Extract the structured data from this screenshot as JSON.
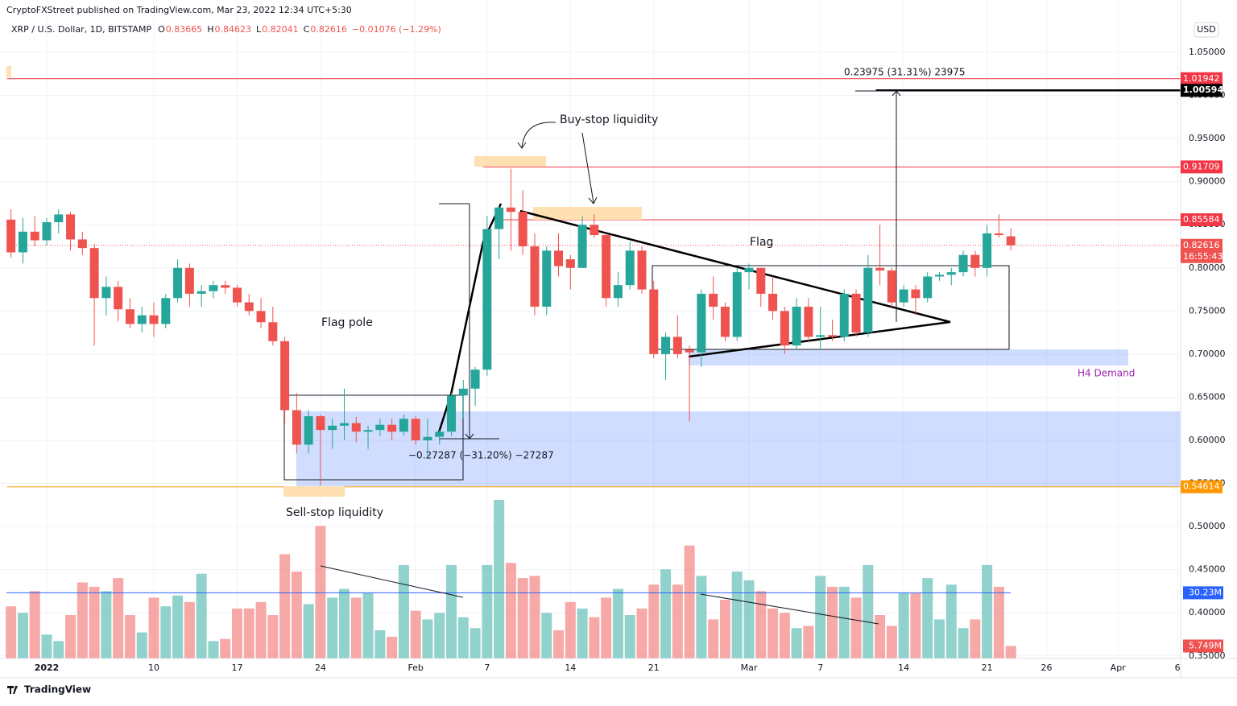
{
  "header": {
    "publisher": "CryptoFXStreet published on TradingView.com, Mar 23, 2022 12:34 UTC+5:30",
    "symbol": "XRP / U.S. Dollar, 1D, BITSTAMP",
    "ohlc": [
      {
        "key": "O",
        "value": "0.83665"
      },
      {
        "key": "H",
        "value": "0.84623"
      },
      {
        "key": "L",
        "value": "0.82041"
      },
      {
        "key": "C",
        "value": "0.82616"
      }
    ],
    "change": "−0.01076 (−1.29%)",
    "currency": "USD"
  },
  "footer": {
    "brand": "TradingView"
  },
  "chart_data": {
    "type": "candlestick",
    "up_color": "#26a69a",
    "down_color": "#ef5350",
    "volume_up_color": "rgba(38,166,154,0.5)",
    "volume_down_color": "rgba(239,83,80,0.5)",
    "x": [
      "2021-12-29",
      "2021-12-30",
      "2021-12-31",
      "2022-01-01",
      "2022-01-02",
      "2022-01-03",
      "2022-01-04",
      "2022-01-05",
      "2022-01-06",
      "2022-01-07",
      "2022-01-08",
      "2022-01-09",
      "2022-01-10",
      "2022-01-11",
      "2022-01-12",
      "2022-01-13",
      "2022-01-14",
      "2022-01-15",
      "2022-01-16",
      "2022-01-17",
      "2022-01-18",
      "2022-01-19",
      "2022-01-20",
      "2022-01-21",
      "2022-01-22",
      "2022-01-23",
      "2022-01-24",
      "2022-01-25",
      "2022-01-26",
      "2022-01-27",
      "2022-01-28",
      "2022-01-29",
      "2022-01-30",
      "2022-01-31",
      "2022-02-01",
      "2022-02-02",
      "2022-02-03",
      "2022-02-04",
      "2022-02-05",
      "2022-02-06",
      "2022-02-07",
      "2022-02-08",
      "2022-02-09",
      "2022-02-10",
      "2022-02-11",
      "2022-02-12",
      "2022-02-13",
      "2022-02-14",
      "2022-02-15",
      "2022-02-16",
      "2022-02-17",
      "2022-02-18",
      "2022-02-19",
      "2022-02-20",
      "2022-02-21",
      "2022-02-22",
      "2022-02-23",
      "2022-02-24",
      "2022-02-25",
      "2022-02-26",
      "2022-02-27",
      "2022-02-28",
      "2022-03-01",
      "2022-03-02",
      "2022-03-03",
      "2022-03-04",
      "2022-03-05",
      "2022-03-06",
      "2022-03-07",
      "2022-03-08",
      "2022-03-09",
      "2022-03-10",
      "2022-03-11",
      "2022-03-12",
      "2022-03-13",
      "2022-03-14",
      "2022-03-15",
      "2022-03-16",
      "2022-03-17",
      "2022-03-18",
      "2022-03-19",
      "2022-03-20",
      "2022-03-21",
      "2022-03-22",
      "2022-03-23"
    ],
    "open": [
      0.856,
      0.818,
      0.842,
      0.832,
      0.853,
      0.862,
      0.833,
      0.823,
      0.765,
      0.778,
      0.752,
      0.735,
      0.745,
      0.735,
      0.765,
      0.8,
      0.77,
      0.773,
      0.78,
      0.777,
      0.76,
      0.75,
      0.737,
      0.715,
      0.635,
      0.595,
      0.628,
      0.612,
      0.617,
      0.62,
      0.61,
      0.612,
      0.618,
      0.61,
      0.625,
      0.6,
      0.604,
      0.61,
      0.652,
      0.66,
      0.682,
      0.845,
      0.87,
      0.865,
      0.825,
      0.755,
      0.82,
      0.81,
      0.8,
      0.85,
      0.838,
      0.765,
      0.78,
      0.82,
      0.775,
      0.7,
      0.72,
      0.705,
      0.702,
      0.77,
      0.755,
      0.72,
      0.795,
      0.8,
      0.77,
      0.75,
      0.71,
      0.755,
      0.72,
      0.722,
      0.72,
      0.77,
      0.725,
      0.8,
      0.797,
      0.76,
      0.775,
      0.765,
      0.79,
      0.792,
      0.795,
      0.815,
      0.8,
      0.84,
      0.83665
    ],
    "high": [
      0.868,
      0.858,
      0.86,
      0.858,
      0.868,
      0.865,
      0.842,
      0.828,
      0.79,
      0.785,
      0.765,
      0.755,
      0.76,
      0.77,
      0.81,
      0.805,
      0.78,
      0.785,
      0.785,
      0.78,
      0.77,
      0.765,
      0.755,
      0.72,
      0.655,
      0.635,
      0.63,
      0.625,
      0.66,
      0.627,
      0.617,
      0.625,
      0.625,
      0.63,
      0.628,
      0.625,
      0.612,
      0.655,
      0.67,
      0.685,
      0.86,
      0.872,
      0.915,
      0.89,
      0.84,
      0.825,
      0.84,
      0.815,
      0.86,
      0.862,
      0.84,
      0.795,
      0.83,
      0.825,
      0.785,
      0.725,
      0.745,
      0.71,
      0.775,
      0.79,
      0.76,
      0.8,
      0.805,
      0.8,
      0.79,
      0.755,
      0.765,
      0.765,
      0.755,
      0.74,
      0.775,
      0.775,
      0.815,
      0.85,
      0.8,
      0.78,
      0.78,
      0.795,
      0.795,
      0.8,
      0.82,
      0.82,
      0.85,
      0.862,
      0.84623
    ],
    "low": [
      0.812,
      0.805,
      0.825,
      0.826,
      0.84,
      0.82,
      0.815,
      0.71,
      0.745,
      0.738,
      0.73,
      0.725,
      0.72,
      0.73,
      0.76,
      0.755,
      0.755,
      0.765,
      0.77,
      0.755,
      0.745,
      0.73,
      0.71,
      0.62,
      0.585,
      0.585,
      0.548,
      0.59,
      0.6,
      0.598,
      0.59,
      0.605,
      0.6,
      0.605,
      0.595,
      0.58,
      0.595,
      0.605,
      0.625,
      0.64,
      0.675,
      0.81,
      0.82,
      0.815,
      0.745,
      0.745,
      0.79,
      0.775,
      0.8,
      0.835,
      0.755,
      0.755,
      0.775,
      0.77,
      0.695,
      0.67,
      0.695,
      0.622,
      0.685,
      0.74,
      0.715,
      0.715,
      0.775,
      0.755,
      0.74,
      0.7,
      0.705,
      0.715,
      0.705,
      0.715,
      0.715,
      0.72,
      0.72,
      0.78,
      0.755,
      0.755,
      0.745,
      0.76,
      0.785,
      0.78,
      0.79,
      0.79,
      0.79,
      0.835,
      0.82041
    ],
    "close": [
      0.818,
      0.842,
      0.832,
      0.853,
      0.862,
      0.833,
      0.823,
      0.765,
      0.778,
      0.752,
      0.735,
      0.745,
      0.735,
      0.765,
      0.8,
      0.77,
      0.773,
      0.78,
      0.777,
      0.76,
      0.75,
      0.737,
      0.715,
      0.635,
      0.595,
      0.628,
      0.612,
      0.617,
      0.62,
      0.61,
      0.612,
      0.618,
      0.61,
      0.625,
      0.6,
      0.604,
      0.61,
      0.652,
      0.66,
      0.682,
      0.845,
      0.87,
      0.865,
      0.825,
      0.755,
      0.82,
      0.802,
      0.8,
      0.85,
      0.838,
      0.765,
      0.78,
      0.82,
      0.775,
      0.7,
      0.72,
      0.7,
      0.702,
      0.77,
      0.755,
      0.72,
      0.795,
      0.8,
      0.77,
      0.75,
      0.71,
      0.755,
      0.72,
      0.722,
      0.72,
      0.77,
      0.725,
      0.8,
      0.797,
      0.76,
      0.775,
      0.765,
      0.79,
      0.792,
      0.795,
      0.815,
      0.8,
      0.84,
      0.838,
      0.82616
    ],
    "volume": [
      24,
      21,
      31,
      11,
      8,
      20,
      35,
      33,
      31,
      37,
      20,
      12,
      28,
      24,
      29,
      26,
      39,
      8,
      9,
      23,
      23,
      26,
      20,
      48,
      40,
      25,
      61,
      28,
      32,
      28,
      30,
      13,
      10,
      43,
      22,
      18,
      21,
      43,
      19,
      14,
      43,
      73,
      44,
      37,
      38,
      21,
      13,
      26,
      23,
      19,
      28,
      32,
      20,
      23,
      34,
      41,
      34,
      52,
      38,
      18,
      27,
      40,
      36,
      31,
      23,
      21,
      14,
      15,
      38,
      33,
      33,
      28,
      43,
      20,
      15,
      30,
      30,
      37,
      18,
      34,
      14,
      18,
      43,
      33,
      5.749
    ],
    "volume_last_label": "5.749M",
    "volume_ma": {
      "value": 30.23,
      "label": "30.23M",
      "color": "#2962ff"
    },
    "ylim": [
      0.347,
      1.064
    ],
    "yticks": [
      {
        "value": 0.35,
        "label": "0.35000"
      },
      {
        "value": 0.4,
        "label": "0.40000"
      },
      {
        "value": 0.45,
        "label": "0.45000"
      },
      {
        "value": 0.5,
        "label": "0.50000"
      },
      {
        "value": 0.55,
        "label": "0.55000"
      },
      {
        "value": 0.6,
        "label": "0.60000"
      },
      {
        "value": 0.65,
        "label": "0.65000"
      },
      {
        "value": 0.7,
        "label": "0.70000"
      },
      {
        "value": 0.75,
        "label": "0.75000"
      },
      {
        "value": 0.8,
        "label": "0.80000"
      },
      {
        "value": 0.85,
        "label": "0.85000"
      },
      {
        "value": 0.9,
        "label": "0.90000"
      },
      {
        "value": 0.95,
        "label": "0.95000"
      },
      {
        "value": 1.0,
        "label": "1.00000"
      },
      {
        "value": 1.05,
        "label": "1.05000"
      }
    ],
    "xticks": [
      {
        "value": "2022-01-01",
        "label": "2022"
      },
      {
        "value": "2022-01-10",
        "label": "10"
      },
      {
        "value": "2022-01-17",
        "label": "17"
      },
      {
        "value": "2022-01-24",
        "label": "24"
      },
      {
        "value": "2022-02-01",
        "label": "Feb"
      },
      {
        "value": "2022-02-07",
        "label": "7"
      },
      {
        "value": "2022-02-14",
        "label": "14"
      },
      {
        "value": "2022-02-21",
        "label": "21"
      },
      {
        "value": "2022-03-01",
        "label": "Mar"
      },
      {
        "value": "2022-03-07",
        "label": "7"
      },
      {
        "value": "2022-03-14",
        "label": "14"
      },
      {
        "value": "2022-03-21",
        "label": "21"
      },
      {
        "value": "2022-03-26",
        "label": "26"
      },
      {
        "value": "2022-04-01",
        "label": "Apr"
      },
      {
        "value": "2022-04-06",
        "label": "6"
      }
    ],
    "price_levels": [
      {
        "value": 1.01942,
        "color": "#f23645",
        "from": "2021-12-29"
      },
      {
        "value": 1.00594,
        "color": "#000000",
        "from": "2022-03-12"
      },
      {
        "value": 0.91709,
        "color": "#f23645",
        "from": "2022-02-07"
      },
      {
        "value": 0.85584,
        "color": "#f23645",
        "from": "2022-02-08"
      },
      {
        "value": 0.54614,
        "color": "#ff9800",
        "from": "2021-12-29"
      }
    ],
    "last_price": {
      "value": 0.82616,
      "countdown": "16:55:43",
      "color": "#ef5350"
    },
    "annotations": {
      "buy_stop": "Buy-stop liquidity",
      "sell_stop": "Sell-stop liquidity",
      "flag_pole": "Flag pole",
      "flag": "Flag",
      "h4_demand": "H4 Demand",
      "measure_up": "0.23975 (31.31%) 23975",
      "measure_down": "−0.27287 (−31.20%) −27287"
    }
  }
}
